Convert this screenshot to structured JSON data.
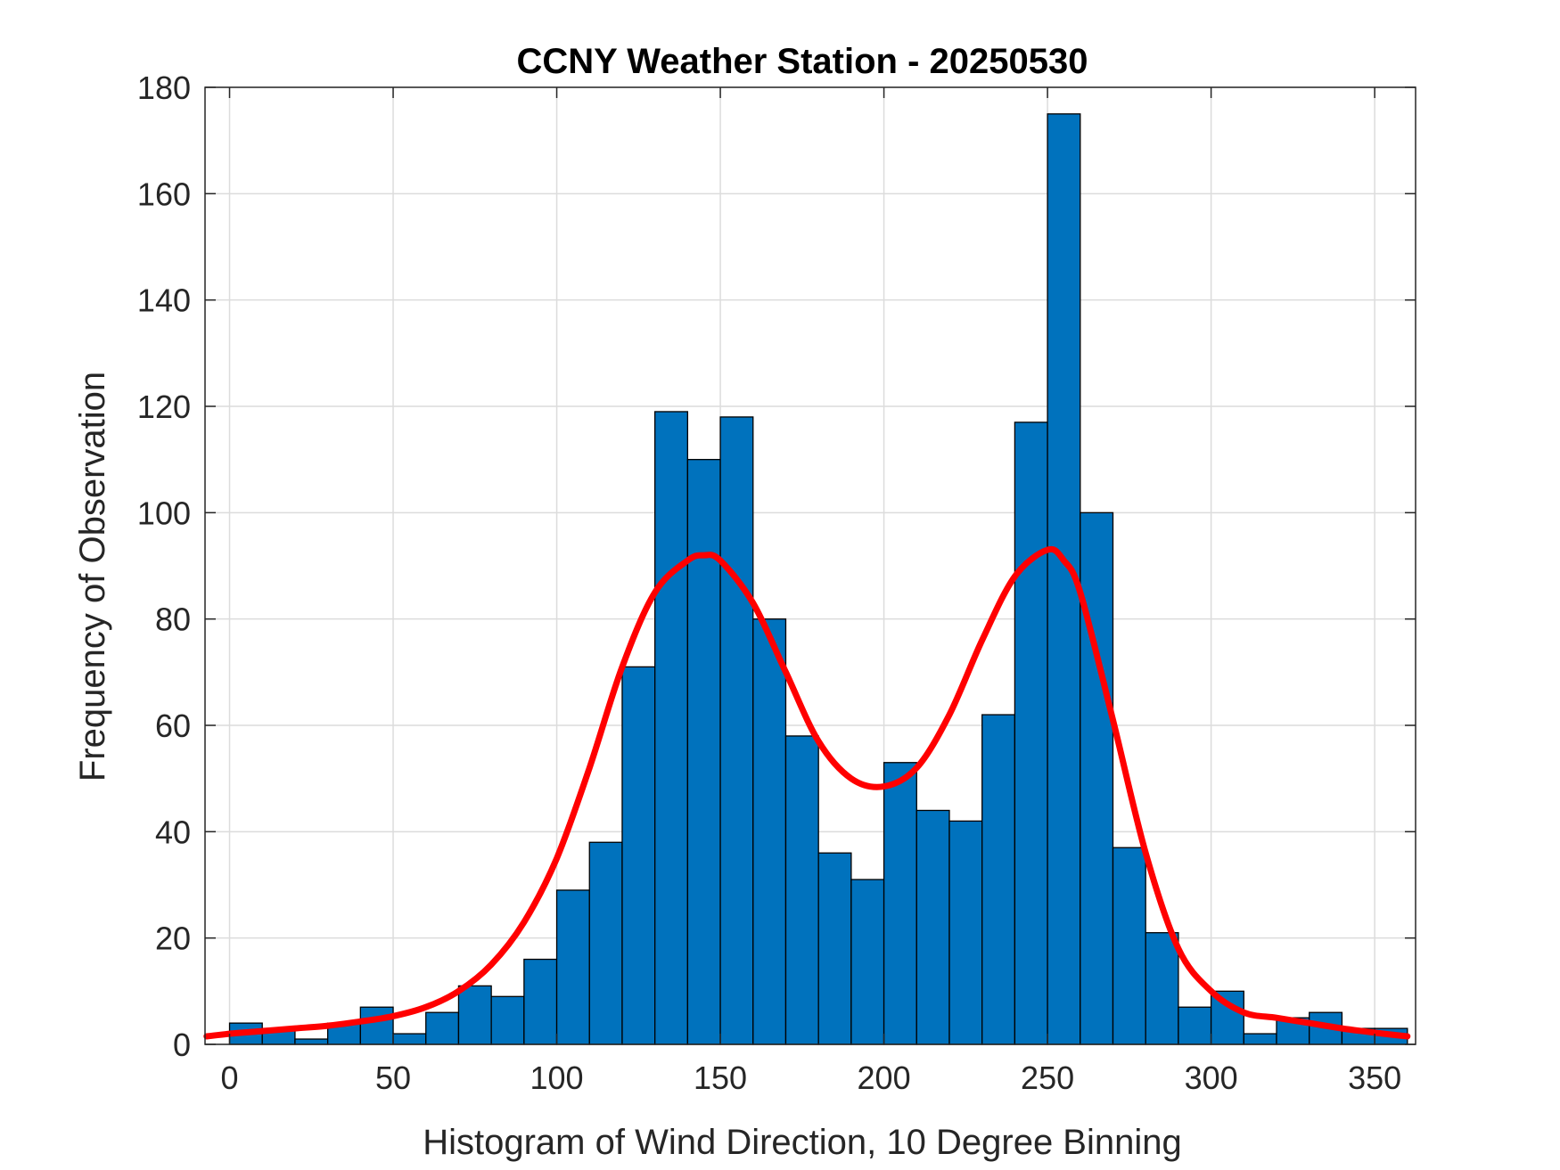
{
  "chart_data": {
    "type": "bar",
    "title": "CCNY Weather Station - 20250530",
    "xlabel": "Histogram of Wind Direction, 10 Degree Binning",
    "ylabel": "Frequency of Observation",
    "xlim": [
      -7.5,
      362.5
    ],
    "ylim": [
      0,
      180
    ],
    "grid": true,
    "x_ticks": [
      0,
      50,
      100,
      150,
      200,
      250,
      300,
      350
    ],
    "y_ticks": [
      0,
      20,
      40,
      60,
      80,
      100,
      120,
      140,
      160,
      180
    ],
    "bin_width": 10,
    "bin_edges": [
      0,
      10,
      20,
      30,
      40,
      50,
      60,
      70,
      80,
      90,
      100,
      110,
      120,
      130,
      140,
      150,
      160,
      170,
      180,
      190,
      200,
      210,
      220,
      230,
      240,
      250,
      260,
      270,
      280,
      290,
      300,
      310,
      320,
      330,
      340,
      350
    ],
    "values": [
      4,
      3,
      1,
      4,
      7,
      2,
      6,
      11,
      9,
      16,
      29,
      38,
      71,
      119,
      110,
      118,
      80,
      58,
      36,
      31,
      53,
      44,
      42,
      62,
      117,
      175,
      100,
      37,
      21,
      7,
      10,
      2,
      5,
      6,
      3,
      3
    ],
    "bar_color": "#0072BD",
    "edge_color": "#000000",
    "fit_curve": {
      "color": "#FF0000",
      "x": [
        -7,
        0,
        10,
        20,
        30,
        40,
        50,
        60,
        70,
        80,
        90,
        100,
        110,
        120,
        130,
        140,
        145,
        150,
        160,
        170,
        180,
        190,
        200,
        210,
        220,
        230,
        240,
        250,
        255,
        260,
        270,
        280,
        290,
        300,
        310,
        320,
        330,
        340,
        350,
        360
      ],
      "y": [
        1.5,
        2.0,
        2.5,
        3.0,
        3.5,
        4.3,
        5.3,
        7.0,
        10.0,
        15.0,
        23.0,
        35.0,
        52.0,
        71.0,
        85.0,
        91.0,
        92.0,
        91.0,
        83.0,
        70.0,
        57.0,
        50.0,
        48.5,
        52.0,
        62.0,
        76.0,
        88.0,
        93.0,
        91.0,
        85.0,
        61.0,
        36.0,
        18.0,
        10.0,
        6.0,
        5.0,
        4.0,
        3.0,
        2.2,
        1.5
      ]
    }
  }
}
